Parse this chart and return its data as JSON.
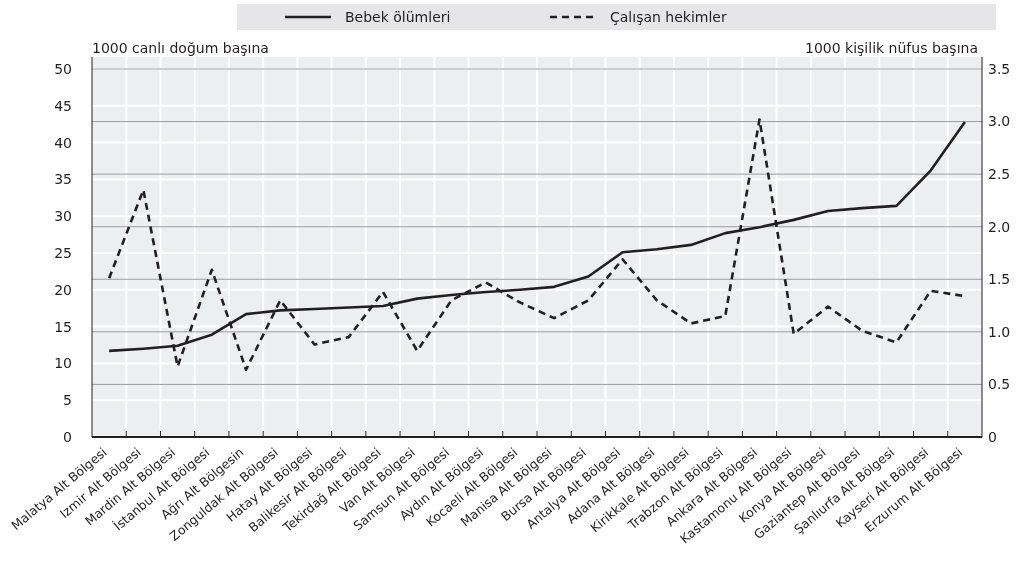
{
  "chart_data": {
    "type": "line",
    "ylabel": "1000 canlı doğum başına",
    "y2label": "1000 kişilik nüfus başına",
    "categories": [
      "Malatya Alt Bölgesi",
      "Izmir Alt Bölgesi",
      "Mardin Alt Bölgesi",
      "İstanbul Alt Bölgesi",
      "Ağrı Alt Bölgesin",
      "Zonguldak Alt Bölgesi",
      "Hatay Alt Bölgesi",
      "Balikesir Alt Bölgesi",
      "Tekirdağ Alt Bölgesi",
      "Van Alt Bölgesi",
      "Samsun Alt Bölgesi",
      "Aydın Alt Bölgesi",
      "Kocaeli Alt Bölgesi",
      "Manisa Alt Bölgesi",
      "Bursa Alt Bölgesi",
      "Antalya Alt Bölgesi",
      "Adana Alt Bölgesi",
      "Kirikkale Alt Bölgesi",
      "Trabzon Alt Bölgesi",
      "Ankara Alt Bölgesi",
      "Kastamonu Alt Bölgesi",
      "Konya Alt Bölgesi",
      "Gaziantep Alt Bölgesi",
      "Şanlıurfa Alt Bölgesi",
      "Kayseri Alt Bölgesi",
      "Erzurum Alt Bölgesi"
    ],
    "series": [
      {
        "name": "Bebek ölümleri",
        "color": "#231f20",
        "line_style": "solid",
        "values": [
          11.7,
          12.0,
          12.4,
          13.9,
          16.7,
          17.2,
          17.4,
          17.6,
          17.8,
          18.8,
          19.3,
          19.7,
          20.0,
          20.4,
          21.8,
          25.1,
          25.5,
          26.1,
          27.7,
          28.5,
          29.5,
          30.7,
          31.1,
          31.4,
          36.2,
          42.8
        ]
      },
      {
        "name": "Çalışan hekimler",
        "color": "#231f20",
        "line_style": "dashed",
        "axis": "y2",
        "values": [
          1.51,
          2.35,
          0.67,
          1.59,
          0.64,
          1.3,
          0.88,
          0.95,
          1.38,
          0.82,
          1.3,
          1.47,
          1.28,
          1.13,
          1.3,
          1.69,
          1.3,
          1.08,
          1.15,
          3.02,
          0.98,
          1.24,
          1.01,
          0.9,
          1.39,
          1.34
        ]
      }
    ],
    "ylim": [
      0,
      50
    ],
    "yticks": [
      0,
      5,
      10,
      15,
      20,
      25,
      30,
      35,
      40,
      45,
      50
    ],
    "y2lim": [
      0,
      3.5
    ],
    "y2ticks": [
      0,
      {
        "value": 0.5,
        "label": "0.5"
      },
      {
        "value": 1,
        "label": "1.0"
      },
      {
        "value": 1.5,
        "label": "1.5"
      },
      {
        "value": 2,
        "label": "2.0"
      },
      {
        "value": 2.5,
        "label": "2.5"
      },
      {
        "value": 3,
        "label": "3.0"
      },
      {
        "value": 3.5,
        "label": "3.5"
      }
    ],
    "grid": true,
    "legend": "top",
    "marker": "none"
  }
}
